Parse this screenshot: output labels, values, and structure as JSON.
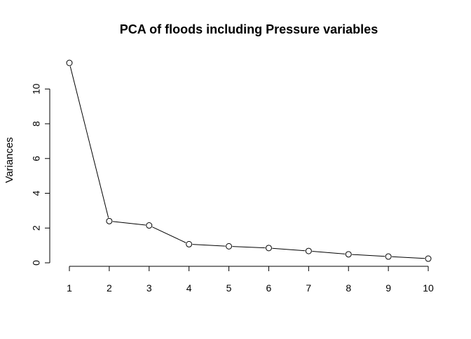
{
  "chart_data": {
    "type": "line",
    "title": "PCA of floods including Pressure variables",
    "xlabel": "",
    "ylabel": "Variances",
    "x": [
      1,
      2,
      3,
      4,
      5,
      6,
      7,
      8,
      9,
      10
    ],
    "y": [
      11.5,
      2.4,
      2.15,
      1.07,
      0.95,
      0.85,
      0.68,
      0.49,
      0.36,
      0.24
    ],
    "xticks": [
      "1",
      "2",
      "3",
      "4",
      "5",
      "6",
      "7",
      "8",
      "9",
      "10"
    ],
    "yticks": [
      "0",
      "2",
      "4",
      "6",
      "8",
      "10"
    ],
    "ylim": [
      0,
      11.5
    ],
    "xlim": [
      1,
      10
    ],
    "grid": false,
    "marker": "open-circle"
  }
}
